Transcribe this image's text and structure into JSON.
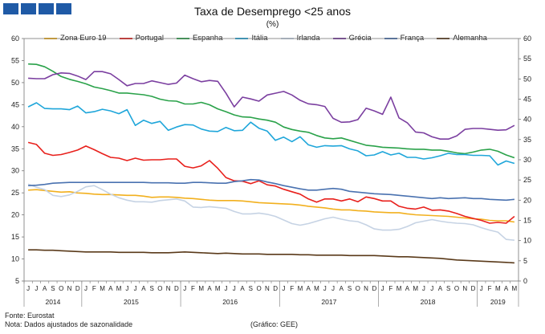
{
  "header": {
    "blocks": 4,
    "block_color": "#1f5aa6"
  },
  "title": "Taxa de Desemprego <25 anos",
  "subtitle": "(%)",
  "footer": {
    "source": "Fonte: Eurostat",
    "note": "Nota: Dados ajustados de sazonalidade",
    "credit": "(Gráfico: GEE)"
  },
  "chart_data": {
    "type": "line",
    "x": [
      "J",
      "J",
      "A",
      "S",
      "O",
      "N",
      "D",
      "J",
      "F",
      "M",
      "A",
      "M",
      "J",
      "J",
      "A",
      "S",
      "O",
      "N",
      "D",
      "J",
      "F",
      "M",
      "A",
      "M",
      "J",
      "J",
      "A",
      "S",
      "O",
      "N",
      "D",
      "J",
      "F",
      "M",
      "A",
      "M",
      "J",
      "J",
      "A",
      "S",
      "O",
      "N",
      "D",
      "J",
      "F",
      "M",
      "A",
      "M",
      "J",
      "J",
      "A",
      "S",
      "O",
      "N",
      "D",
      "J",
      "F",
      "M",
      "A",
      "M"
    ],
    "year_labels": [
      "2014",
      "2015",
      "2016",
      "2017",
      "2018",
      "2019"
    ],
    "ylim": [
      5,
      60
    ],
    "y2lim": [
      0,
      60
    ],
    "yticks": [
      5,
      10,
      15,
      20,
      25,
      30,
      35,
      40,
      45,
      50,
      55,
      60
    ],
    "y2ticks": [
      0,
      5,
      10,
      15,
      20,
      25,
      30,
      35,
      40,
      45,
      50,
      55,
      60
    ],
    "grid": false,
    "legend": "top",
    "series": [
      {
        "name": "Zona Euro 19",
        "color": "#f2b01e",
        "axis": "right",
        "values": [
          22.5,
          22.6,
          22.4,
          22.2,
          22.0,
          22.1,
          21.8,
          21.7,
          21.5,
          21.4,
          21.4,
          21.3,
          21.2,
          21.2,
          21.0,
          20.7,
          20.8,
          20.8,
          20.7,
          20.5,
          20.4,
          20.2,
          20.0,
          19.9,
          19.9,
          19.9,
          19.8,
          19.6,
          19.4,
          19.3,
          19.2,
          19.1,
          19.0,
          18.8,
          18.5,
          18.3,
          18.1,
          17.8,
          17.6,
          17.6,
          17.4,
          17.3,
          17.1,
          17.0,
          16.9,
          16.9,
          16.6,
          16.4,
          16.3,
          16.2,
          16.1,
          16.0,
          15.8,
          15.6,
          15.4,
          15.3,
          15.0,
          14.9,
          14.9,
          14.6
        ]
      },
      {
        "name": "Portugal",
        "color": "#e8201c",
        "axis": "right",
        "values": [
          34.3,
          33.8,
          31.6,
          31.1,
          31.3,
          31.8,
          32.4,
          33.4,
          32.5,
          31.5,
          30.6,
          30.4,
          29.8,
          30.4,
          29.9,
          30.0,
          30.0,
          30.2,
          30.2,
          28.4,
          28.0,
          28.5,
          29.8,
          27.9,
          25.6,
          24.8,
          24.7,
          24.1,
          24.8,
          23.8,
          23.5,
          22.7,
          22.1,
          21.5,
          20.3,
          19.5,
          20.3,
          20.3,
          19.8,
          20.3,
          19.6,
          20.8,
          20.4,
          19.8,
          19.8,
          18.5,
          18.0,
          17.8,
          18.3,
          17.5,
          17.6,
          17.3,
          16.7,
          16.0,
          15.5,
          15.0,
          14.3,
          14.5,
          14.3,
          16.0
        ]
      },
      {
        "name": "Espanha",
        "color": "#2aa24a",
        "axis": "right",
        "values": [
          53.7,
          53.6,
          53.0,
          51.9,
          50.6,
          49.9,
          49.4,
          48.8,
          48.0,
          47.6,
          47.1,
          46.5,
          46.5,
          46.3,
          46.1,
          45.7,
          45.0,
          44.6,
          44.5,
          43.8,
          43.8,
          44.2,
          43.6,
          42.6,
          41.9,
          41.1,
          40.6,
          40.5,
          40.1,
          39.8,
          39.3,
          38.1,
          37.5,
          37.1,
          36.8,
          36.0,
          35.4,
          35.2,
          35.4,
          34.8,
          34.2,
          33.6,
          33.4,
          33.1,
          33.0,
          32.9,
          32.7,
          32.6,
          32.6,
          32.4,
          32.4,
          32.1,
          31.7,
          31.5,
          31.9,
          32.4,
          32.6,
          32.1,
          31.2,
          30.5
        ]
      },
      {
        "name": "Itália",
        "color": "#1fa6da",
        "axis": "right",
        "values": [
          43.1,
          44.1,
          42.7,
          42.6,
          42.6,
          42.4,
          43.3,
          41.6,
          41.9,
          42.5,
          42.1,
          41.4,
          42.4,
          38.5,
          39.8,
          39.0,
          39.5,
          37.3,
          38.1,
          38.7,
          38.6,
          37.6,
          37.1,
          37.0,
          38.0,
          37.2,
          37.3,
          39.3,
          37.8,
          37.1,
          34.8,
          35.6,
          34.5,
          35.7,
          33.7,
          33.1,
          33.5,
          33.4,
          33.5,
          32.7,
          32.2,
          31.0,
          31.2,
          32.0,
          31.2,
          31.6,
          30.6,
          30.6,
          30.2,
          30.5,
          31.0,
          31.6,
          31.3,
          31.3,
          31.1,
          31.1,
          31.0,
          28.7,
          29.7,
          29.1
        ]
      },
      {
        "name": "Irlanda",
        "color": "#c6d3e4",
        "axis": "right",
        "values": [
          24.0,
          23.2,
          22.6,
          21.2,
          20.9,
          21.3,
          22.2,
          23.3,
          23.6,
          22.6,
          21.5,
          20.6,
          20.0,
          19.6,
          19.6,
          19.5,
          19.9,
          20.1,
          20.3,
          19.8,
          18.3,
          18.2,
          18.4,
          18.2,
          18.0,
          17.2,
          16.6,
          16.6,
          16.8,
          16.5,
          16.0,
          15.1,
          14.2,
          13.8,
          14.2,
          14.8,
          15.4,
          15.8,
          15.3,
          14.9,
          14.7,
          13.9,
          12.9,
          12.6,
          12.6,
          12.8,
          13.5,
          14.4,
          14.8,
          15.2,
          14.8,
          14.5,
          14.3,
          14.2,
          13.9,
          13.2,
          12.6,
          12.1,
          10.3,
          10.1
        ]
      },
      {
        "name": "Grécia",
        "color": "#7b3fa0",
        "axis": "left",
        "values": [
          51.0,
          50.9,
          50.9,
          51.8,
          52.2,
          52.1,
          51.5,
          50.7,
          52.5,
          52.5,
          52.0,
          50.7,
          49.3,
          49.8,
          49.8,
          50.4,
          50.0,
          49.6,
          49.9,
          51.7,
          50.9,
          50.2,
          50.5,
          50.3,
          47.6,
          44.5,
          46.7,
          46.3,
          45.8,
          47.2,
          47.6,
          48.0,
          47.2,
          46.0,
          45.2,
          45.0,
          44.6,
          41.9,
          41.0,
          41.1,
          41.6,
          44.2,
          43.6,
          42.8,
          46.7,
          42.0,
          40.9,
          38.8,
          38.6,
          37.7,
          37.2,
          37.2,
          37.9,
          39.4,
          39.6,
          39.6,
          39.4,
          39.2,
          39.3,
          40.3
        ]
      },
      {
        "name": "França",
        "color": "#4a72b0",
        "axis": "right",
        "values": [
          23.6,
          23.7,
          23.9,
          24.2,
          24.3,
          24.4,
          24.4,
          24.4,
          24.4,
          24.4,
          24.4,
          24.4,
          24.4,
          24.4,
          24.4,
          24.3,
          24.3,
          24.3,
          24.2,
          24.2,
          24.4,
          24.4,
          24.3,
          24.2,
          24.2,
          24.6,
          24.8,
          25.1,
          25.0,
          24.5,
          24.1,
          23.6,
          23.2,
          22.8,
          22.5,
          22.5,
          22.7,
          22.9,
          22.7,
          22.2,
          22.0,
          21.8,
          21.6,
          21.5,
          21.4,
          21.2,
          21.0,
          20.8,
          20.6,
          20.4,
          20.6,
          20.4,
          20.5,
          20.6,
          20.4,
          20.4,
          20.2,
          20.1,
          20.0,
          20.2
        ]
      },
      {
        "name": "Alemanha",
        "color": "#5a3a1a",
        "axis": "right",
        "values": [
          7.7,
          7.7,
          7.6,
          7.6,
          7.5,
          7.4,
          7.3,
          7.2,
          7.2,
          7.2,
          7.2,
          7.1,
          7.1,
          7.1,
          7.1,
          7.0,
          7.0,
          7.0,
          7.1,
          7.2,
          7.1,
          7.0,
          6.9,
          6.8,
          6.9,
          6.8,
          6.7,
          6.7,
          6.7,
          6.6,
          6.6,
          6.6,
          6.6,
          6.5,
          6.5,
          6.4,
          6.4,
          6.4,
          6.4,
          6.3,
          6.3,
          6.3,
          6.3,
          6.2,
          6.1,
          6.0,
          6.0,
          5.9,
          5.8,
          5.7,
          5.6,
          5.4,
          5.2,
          5.1,
          5.0,
          4.9,
          4.8,
          4.7,
          4.6,
          4.5
        ]
      }
    ]
  }
}
